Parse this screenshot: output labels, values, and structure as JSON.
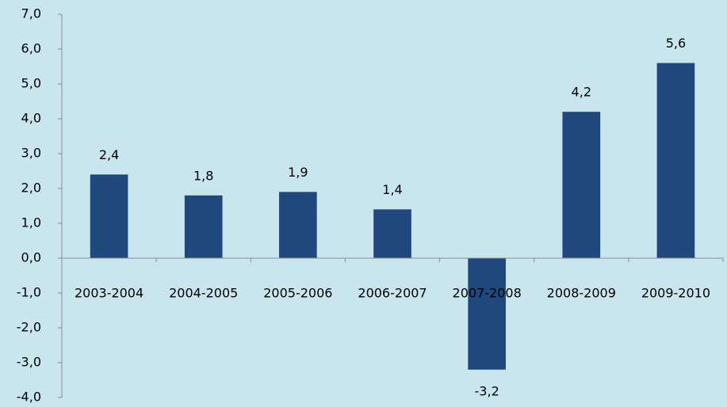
{
  "chart_data": {
    "type": "bar",
    "categories": [
      "2003-2004",
      "2004-2005",
      "2005-2006",
      "2006-2007",
      "2007-2008",
      "2008-2009",
      "2009-2010"
    ],
    "values": [
      2.4,
      1.8,
      1.9,
      1.4,
      -3.2,
      4.2,
      5.6
    ],
    "value_labels": [
      "2,4",
      "1,8",
      "1,9",
      "1,4",
      "-3,2",
      "4,2",
      "5,6"
    ],
    "color": "#1f497d",
    "ylim": [
      -4,
      7
    ],
    "yticks": [
      {
        "value": -4,
        "label": "-4,0"
      },
      {
        "value": -3,
        "label": "-3,0"
      },
      {
        "value": -2,
        "label": "-2,0"
      },
      {
        "value": -1,
        "label": "-1,0"
      },
      {
        "value": 0,
        "label": "0,0"
      },
      {
        "value": 1,
        "label": "1,0"
      },
      {
        "value": 2,
        "label": "2,0"
      },
      {
        "value": 3,
        "label": "3,0"
      },
      {
        "value": 4,
        "label": "4,0"
      },
      {
        "value": 5,
        "label": "5,0"
      },
      {
        "value": 6,
        "label": "6,0"
      },
      {
        "value": 7,
        "label": "7,0"
      }
    ],
    "grid": false
  }
}
